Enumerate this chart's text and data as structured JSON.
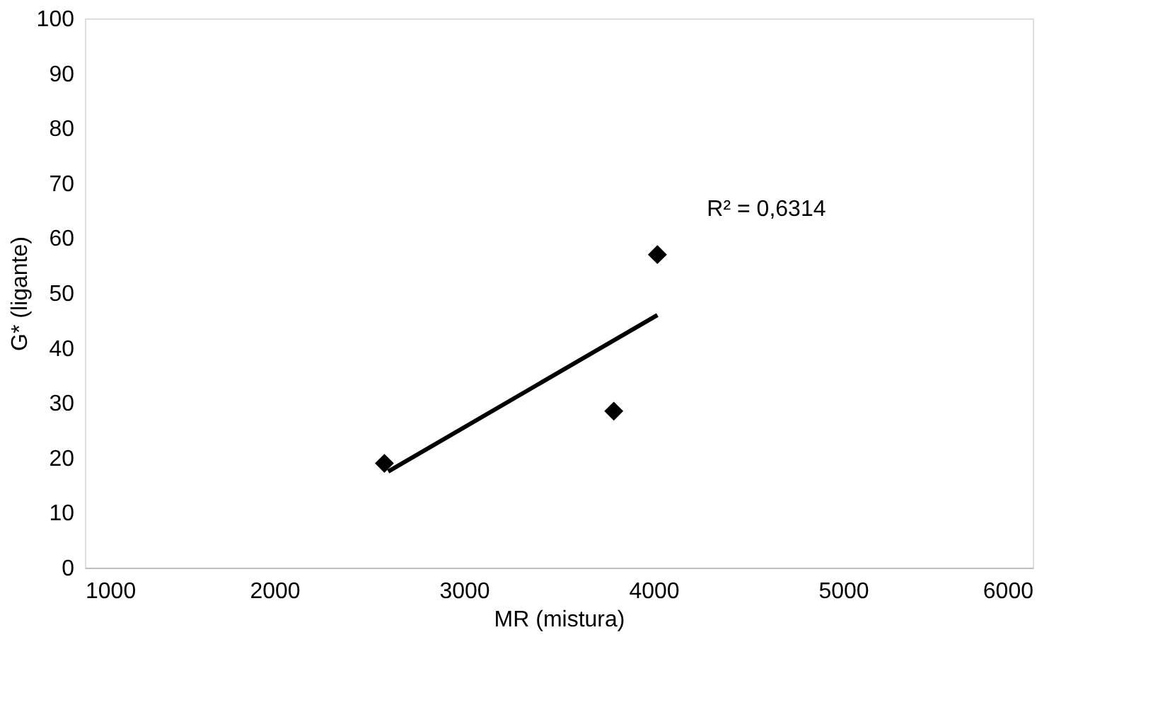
{
  "chart_data": {
    "type": "scatter",
    "xlabel": "MR (mistura)",
    "ylabel": "G* (ligante)",
    "xlim": [
      1000,
      6000
    ],
    "xticks": [
      1000,
      2000,
      3000,
      4000,
      5000,
      6000
    ],
    "ylim": [
      0,
      100
    ],
    "yticks": [
      0,
      10,
      20,
      30,
      40,
      50,
      60,
      70,
      80,
      90,
      100
    ],
    "grid": false,
    "marker": "diamond",
    "series": [
      {
        "color": "#000000",
        "x": [
          2580,
          3790,
          4020
        ],
        "values": [
          19,
          28.5,
          57
        ]
      },
      {
        "type": "line",
        "marker": "none",
        "color": "#000000",
        "x": [
          2600,
          4020
        ],
        "values": [
          17.5,
          46
        ]
      }
    ],
    "annotations": [
      "R² = 0,6314"
    ]
  }
}
